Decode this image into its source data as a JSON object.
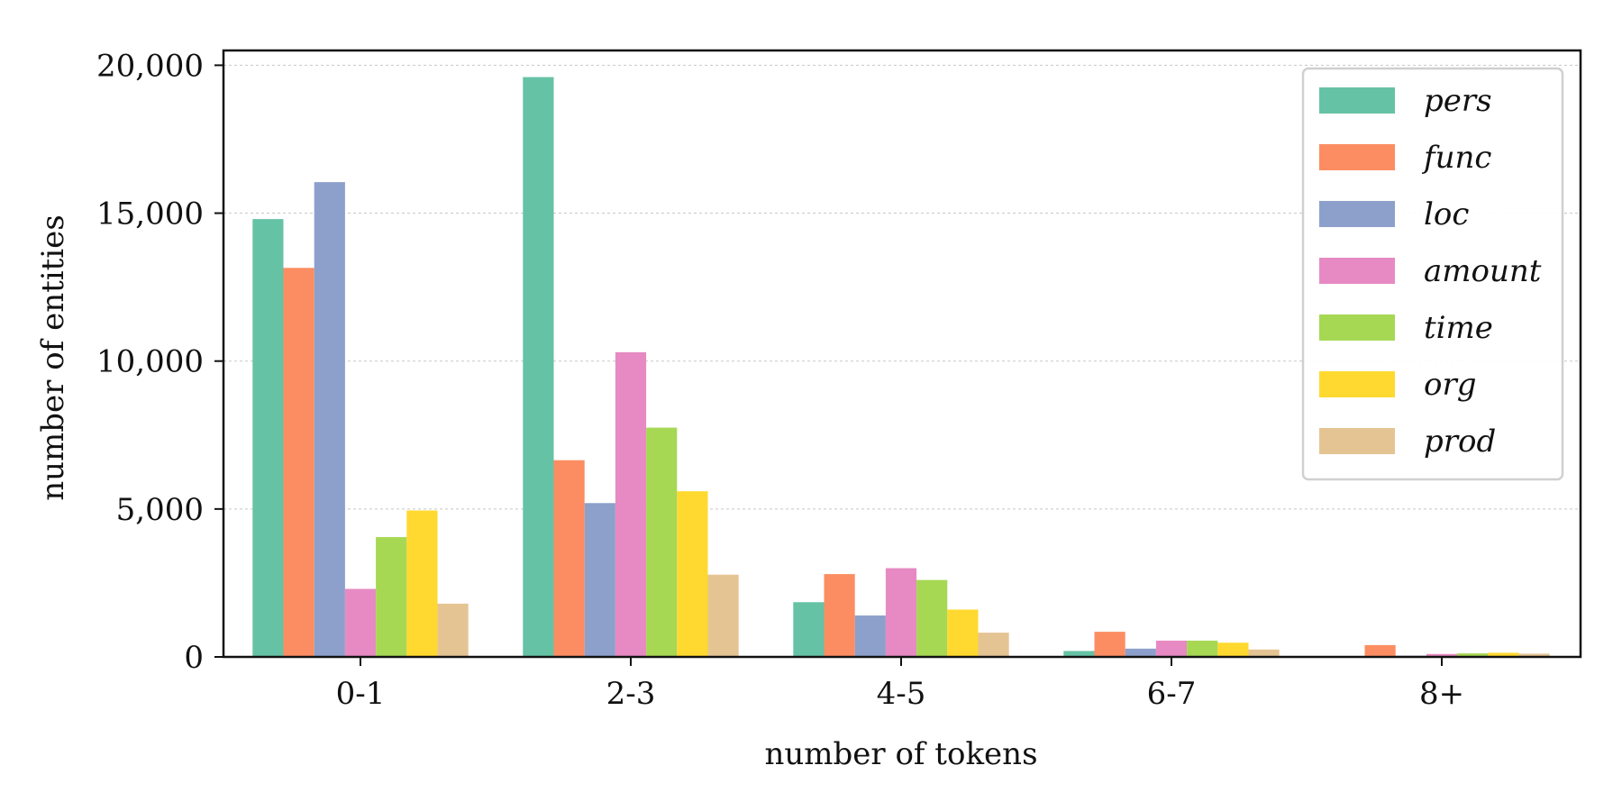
{
  "chart_data": {
    "type": "bar",
    "title": "",
    "xlabel": "number of tokens",
    "ylabel": "number of entities",
    "categories": [
      "0-1",
      "2-3",
      "4-5",
      "6-7",
      "8+"
    ],
    "ylim": [
      0,
      20500
    ],
    "yticks": [
      0,
      5000,
      10000,
      15000,
      20000
    ],
    "ytick_labels": [
      "0",
      "5,000",
      "10,000",
      "15,000",
      "20,000"
    ],
    "grid": true,
    "legend_position": "top-right",
    "series": [
      {
        "name": "pers",
        "color": "#66c2a5",
        "values": [
          14800,
          19600,
          1850,
          200,
          30
        ]
      },
      {
        "name": "func",
        "color": "#fc8d62",
        "values": [
          13150,
          6650,
          2800,
          850,
          400
        ]
      },
      {
        "name": "loc",
        "color": "#8da0cb",
        "values": [
          16050,
          5200,
          1400,
          280,
          40
        ]
      },
      {
        "name": "amount",
        "color": "#e78ac3",
        "values": [
          2300,
          10300,
          3000,
          550,
          100
        ]
      },
      {
        "name": "time",
        "color": "#a6d854",
        "values": [
          4050,
          7750,
          2600,
          550,
          120
        ]
      },
      {
        "name": "org",
        "color": "#ffd92f",
        "values": [
          4950,
          5600,
          1600,
          480,
          140
        ]
      },
      {
        "name": "prod",
        "color": "#e5c494",
        "values": [
          1800,
          2780,
          820,
          250,
          110
        ]
      }
    ]
  }
}
